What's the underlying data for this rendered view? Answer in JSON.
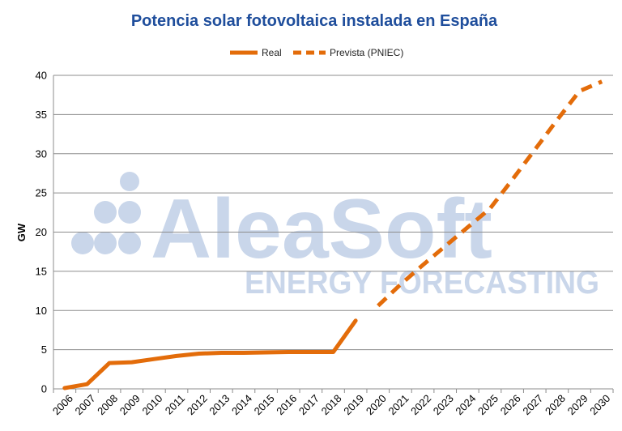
{
  "chart_data": {
    "type": "line",
    "title": "Potencia  solar fotovoltaica instalada en España",
    "ylabel": "GW",
    "xlabel": "",
    "ylim": [
      0,
      40
    ],
    "yticks": [
      0,
      5,
      10,
      15,
      20,
      25,
      30,
      35,
      40
    ],
    "grid": true,
    "legend_position": "top-center",
    "categories": [
      "2006",
      "2007",
      "2008",
      "2009",
      "2010",
      "2011",
      "2012",
      "2013",
      "2014",
      "2015",
      "2016",
      "2017",
      "2018",
      "2019",
      "2020",
      "2021",
      "2022",
      "2023",
      "2024",
      "2025",
      "2026",
      "2027",
      "2028",
      "2029",
      "2030"
    ],
    "series": [
      {
        "name": "Real",
        "style": "solid",
        "color": "#e36c0a",
        "x": [
          "2006",
          "2007",
          "2008",
          "2009",
          "2010",
          "2011",
          "2012",
          "2013",
          "2014",
          "2015",
          "2016",
          "2017",
          "2018",
          "2019"
        ],
        "values": [
          0.1,
          0.6,
          3.3,
          3.4,
          3.8,
          4.2,
          4.5,
          4.6,
          4.6,
          4.65,
          4.7,
          4.7,
          4.7,
          8.7
        ]
      },
      {
        "name": "Prevista (PNIEC)",
        "style": "dashed",
        "color": "#e36c0a",
        "x": [
          "2020",
          "2021",
          "2022",
          "2023",
          "2024",
          "2025",
          "2026",
          "2027",
          "2028",
          "2029",
          "2030"
        ],
        "values": [
          10.6,
          13.3,
          15.8,
          18.2,
          20.6,
          23.0,
          26.7,
          30.5,
          34.3,
          38.0,
          39.2
        ]
      }
    ]
  },
  "watermark": {
    "brand": "AleaSoft",
    "tagline": "ENERGY FORECASTING",
    "logo_icon": "dots-logo-icon",
    "color": "#c9d6ea"
  },
  "colors": {
    "title": "#1f4e9c",
    "series": "#e36c0a",
    "grid": "#8c8c8c"
  }
}
